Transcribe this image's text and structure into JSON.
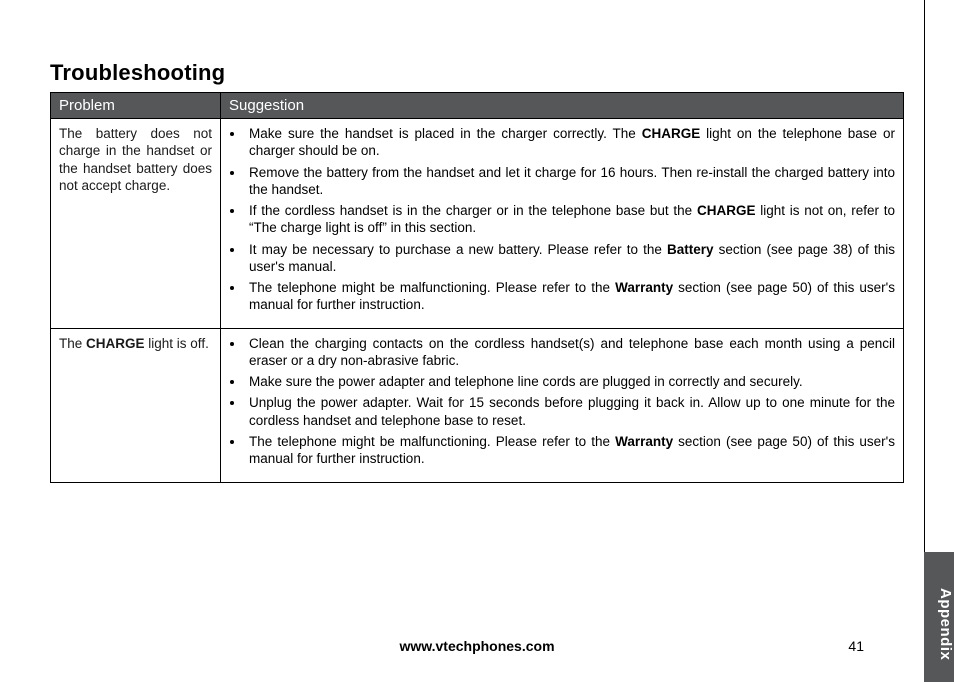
{
  "title": "Troubleshooting",
  "headers": {
    "problem": "Problem",
    "suggestion": "Suggestion"
  },
  "rows": [
    {
      "problem_html": "The battery does not charge in the handset or the handset battery does not accept charge.",
      "suggestions": [
        "Make sure the handset is placed in the charger correctly. The <span class=\"b\">CHARGE</span> light on the telephone base or charger should be on.",
        "Remove the battery from the handset and let it charge for 16 hours. Then re-install the charged battery into the handset.",
        "If the cordless handset is in the charger or in the telephone base but the <span class=\"b\">CHARGE</span> light is not on, refer to “The charge light is off” in this section.",
        "It may be necessary to purchase a new battery. Please refer to the <span class=\"b\">Battery</span> section (see page 38) of this user's manual.",
        "The telephone might be malfunctioning. Please refer to the <span class=\"b\">Warranty</span> section (see page 50) of this user's manual for further instruction."
      ]
    },
    {
      "problem_html": "The <span class=\"b\">CHARGE</span> light is off.",
      "suggestions": [
        "Clean the charging contacts on the cordless handset(s) and telephone base each month using a pencil eraser or a dry non-abrasive fabric.",
        "Make sure the power adapter and telephone line cords are plugged in correctly and securely.",
        "Unplug the power adapter. Wait for 15 seconds before plugging it back in. Allow up to one minute for the cordless handset and telephone base to reset.",
        "The telephone might be malfunctioning. Please refer to the <span class=\"b\">Warranty</span> section (see page 50) of this user's manual for further instruction."
      ]
    }
  ],
  "footer": {
    "url": "www.vtechphones.com",
    "page": "41"
  },
  "side_tab": "Appendix"
}
